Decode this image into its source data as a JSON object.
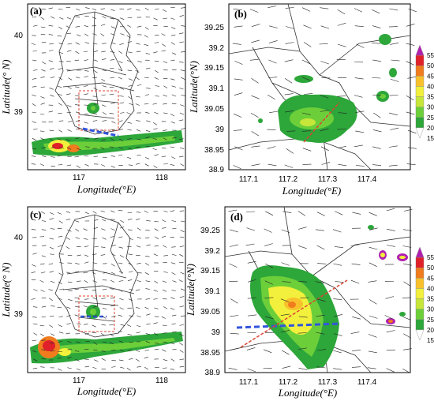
{
  "panels": [
    {
      "id": "a",
      "label": "(a)",
      "xlabel": "Longitude(°E)",
      "ylabel": "Latitude(° N)",
      "x_ticks": [
        "117",
        "118"
      ],
      "y_ticks": [
        "40",
        "39"
      ]
    },
    {
      "id": "b",
      "label": "(b)",
      "xlabel": "Longitude(°E)",
      "ylabel": "Latitude(°N)",
      "x_ticks": [
        "117.1",
        "117.2",
        "117.3",
        "117.4"
      ],
      "y_ticks": [
        "39.25",
        "39.2",
        "39.15",
        "39.1",
        "39.05",
        "39",
        "38.95",
        "38.9"
      ]
    },
    {
      "id": "c",
      "label": "(c)",
      "xlabel": "Longitude(°E)",
      "ylabel": "Latitude(° N)",
      "x_ticks": [
        "117",
        "118"
      ],
      "y_ticks": [
        "40",
        "39"
      ]
    },
    {
      "id": "d",
      "label": "(d)",
      "xlabel": "Longitude(°E)",
      "ylabel": "Latitude(°N)",
      "x_ticks": [
        "117.1",
        "117.2",
        "117.3",
        "117.4"
      ],
      "y_ticks": [
        "39.25",
        "39.2",
        "39.15",
        "39.1",
        "39.05",
        "39",
        "38.95",
        "38.9"
      ]
    }
  ],
  "colorbar": {
    "levels": [
      "55",
      "50",
      "45",
      "40",
      "35",
      "30",
      "25",
      "20",
      "15"
    ],
    "colors": [
      "#b01fb0",
      "#e0212a",
      "#f07c1e",
      "#f8c12b",
      "#f2f03c",
      "#c6e63a",
      "#6ccf3a",
      "#2da63a",
      "#ffffff"
    ]
  },
  "colors": {
    "reflectivity_low": "#6ccf3a",
    "reflectivity_mid": "#f2f03c",
    "reflectivity_high": "#e0212a",
    "line_blue": "#3355dd",
    "line_red": "#dd4433"
  }
}
